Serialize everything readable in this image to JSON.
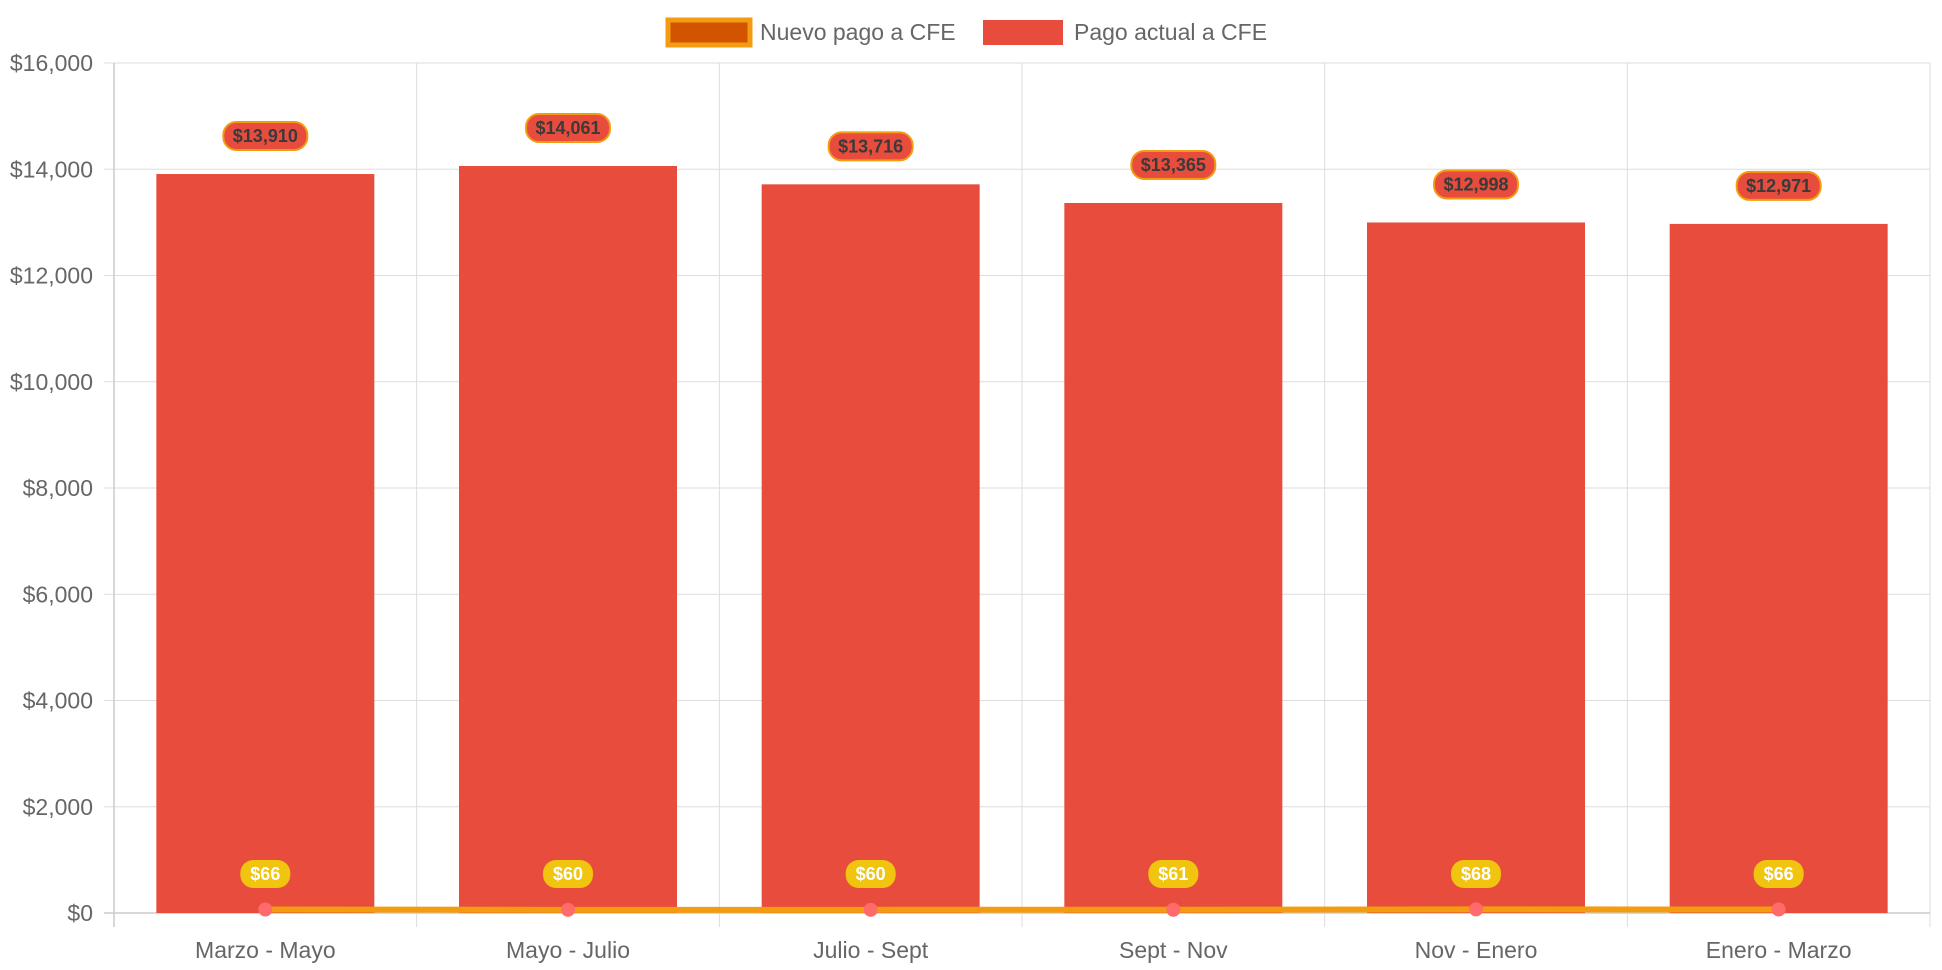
{
  "chart_data": {
    "type": "bar",
    "categories": [
      "Marzo - Mayo",
      "Mayo - Julio",
      "Julio - Sept",
      "Sept - Nov",
      "Nov - Enero",
      "Enero - Marzo"
    ],
    "series": [
      {
        "name": "Nuevo pago a CFE",
        "type": "line",
        "values": [
          66,
          60,
          60,
          61,
          68,
          66
        ],
        "labels": [
          "$66",
          "$60",
          "$60",
          "$61",
          "$68",
          "$66"
        ],
        "color": "#f39c12",
        "fill_color": "#d35400",
        "point_color": "#ff6b6b",
        "label_color": "#f1c40f"
      },
      {
        "name": "Pago actual a CFE",
        "type": "bar",
        "values": [
          13910,
          14061,
          13716,
          13365,
          12998,
          12971
        ],
        "labels": [
          "$13,910",
          "$14,061",
          "$13,716",
          "$13,365",
          "$12,998",
          "$12,971"
        ],
        "color": "#e74c3c",
        "label_border_color": "#f39c12"
      }
    ],
    "ylim": [
      0,
      16000
    ],
    "y_ticks": [
      0,
      2000,
      4000,
      6000,
      8000,
      10000,
      12000,
      14000,
      16000
    ],
    "y_tick_labels": [
      "$0",
      "$2,000",
      "$4,000",
      "$6,000",
      "$8,000",
      "$10,000",
      "$12,000",
      "$14,000",
      "$16,000"
    ],
    "grid": true,
    "legend_position": "top-center",
    "title": "",
    "xlabel": "",
    "ylabel": ""
  }
}
